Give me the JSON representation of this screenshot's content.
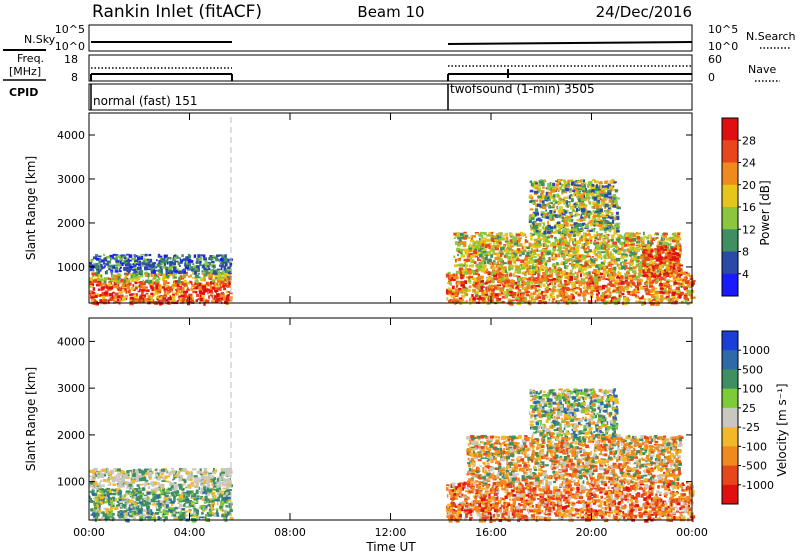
{
  "header": {
    "station": "Rankin Inlet (fitACF)",
    "beam": "Beam 10",
    "date": "24/Dec/2016"
  },
  "sky_panel": {
    "left_label": "N.Sky",
    "left_ticks": [
      "10^5",
      "10^0"
    ],
    "right_label": "N.Search",
    "right_ticks": [
      "10^5",
      "10^0"
    ]
  },
  "freq_panel": {
    "left_label_line1": "Freq.",
    "left_label_line2": "[MHz]",
    "left_ticks": [
      "18",
      "8"
    ],
    "right_label": "Nave",
    "right_ticks": [
      "60",
      "0"
    ]
  },
  "cpid_panel": {
    "label": "CPID",
    "mode1": "normal (fast) 151",
    "mode2": "twofsound (1-min) 3505"
  },
  "power_panel": {
    "ylabel": "Slant Range [km]",
    "yticks": [
      "1000",
      "2000",
      "3000",
      "4000"
    ],
    "colorbar_label": "Power [dB]",
    "colorbar_ticks": [
      "4",
      "8",
      "12",
      "16",
      "20",
      "24",
      "28"
    ],
    "colors": [
      "#1a1aff",
      "#2b4aa8",
      "#3f8f60",
      "#8cc63f",
      "#e6c619",
      "#f08a1c",
      "#e8461c",
      "#e01010"
    ]
  },
  "velocity_panel": {
    "ylabel": "Slant Range [km]",
    "yticks": [
      "1000",
      "2000",
      "3000",
      "4000"
    ],
    "colorbar_label": "Velocity [m s⁻¹]",
    "colorbar_ticks": [
      "1000",
      "500",
      "100",
      "25",
      "-25",
      "-100",
      "-500",
      "-1000"
    ],
    "colors": [
      "#1a3fd6",
      "#2f6aa8",
      "#3f8f60",
      "#7ccc3a",
      "#c8c8c0",
      "#f2b82a",
      "#f08a1c",
      "#e8461c",
      "#e01010"
    ]
  },
  "x_axis": {
    "ticks": [
      "00:00",
      "04:00",
      "08:00",
      "12:00",
      "16:00",
      "20:00",
      "00:00"
    ],
    "label": "Time UT"
  },
  "chart_data": [
    {
      "type": "heatmap",
      "title": "Rankin Inlet (fitACF)",
      "subtitle": "Beam 10",
      "xlabel": "Time UT",
      "ylabel": "Slant Range [km]",
      "colorbar": "Power [dB]",
      "xlim": [
        "00:00",
        "24:00"
      ],
      "ylim": [
        180,
        4500
      ],
      "colorbar_range": [
        0,
        30
      ],
      "scatter_periods": [
        {
          "start_hour": 0.0,
          "end_hour": 5.6,
          "cpid": "normal (fast) 151"
        },
        {
          "start_hour": 14.2,
          "end_hour": 24.0,
          "cpid": "twofsound (1-min) 3505"
        }
      ],
      "regions": [
        {
          "t_start": 0.0,
          "t_end": 5.6,
          "range_start_km": 200,
          "range_end_km": 700,
          "power_db": 26
        },
        {
          "t_start": 0.0,
          "t_end": 5.6,
          "range_start_km": 700,
          "range_end_km": 900,
          "power_db": 18
        },
        {
          "t_start": 0.0,
          "t_end": 5.6,
          "range_start_km": 900,
          "range_end_km": 1300,
          "power_db": 8
        },
        {
          "t_start": 14.2,
          "t_end": 24.0,
          "range_start_km": 200,
          "range_end_km": 900,
          "power_db": 22
        },
        {
          "t_start": 14.5,
          "t_end": 23.5,
          "range_start_km": 900,
          "range_end_km": 1800,
          "power_db": 18
        },
        {
          "t_start": 17.5,
          "t_end": 21.0,
          "range_start_km": 1800,
          "range_end_km": 3000,
          "power_db": 12
        },
        {
          "t_start": 22.0,
          "t_end": 23.5,
          "range_start_km": 800,
          "range_end_km": 1500,
          "power_db": 28
        }
      ]
    },
    {
      "type": "heatmap",
      "xlabel": "Time UT",
      "ylabel": "Slant Range [km]",
      "colorbar": "Velocity [m s⁻¹]",
      "xlim": [
        "00:00",
        "24:00"
      ],
      "ylim": [
        180,
        4500
      ],
      "colorbar_range": [
        -1000,
        1000
      ],
      "regions": [
        {
          "t_start": 0.0,
          "t_end": 5.6,
          "range_start_km": 200,
          "range_end_km": 900,
          "velocity": 100
        },
        {
          "t_start": 0.0,
          "t_end": 5.6,
          "range_start_km": 900,
          "range_end_km": 1300,
          "velocity": 0
        },
        {
          "t_start": 14.2,
          "t_end": 24.0,
          "range_start_km": 200,
          "range_end_km": 1000,
          "velocity": -300
        },
        {
          "t_start": 15.0,
          "t_end": 23.5,
          "range_start_km": 1000,
          "range_end_km": 2000,
          "velocity": -200
        },
        {
          "t_start": 17.5,
          "t_end": 21.0,
          "range_start_km": 2000,
          "range_end_km": 3000,
          "velocity": 50
        }
      ]
    }
  ]
}
